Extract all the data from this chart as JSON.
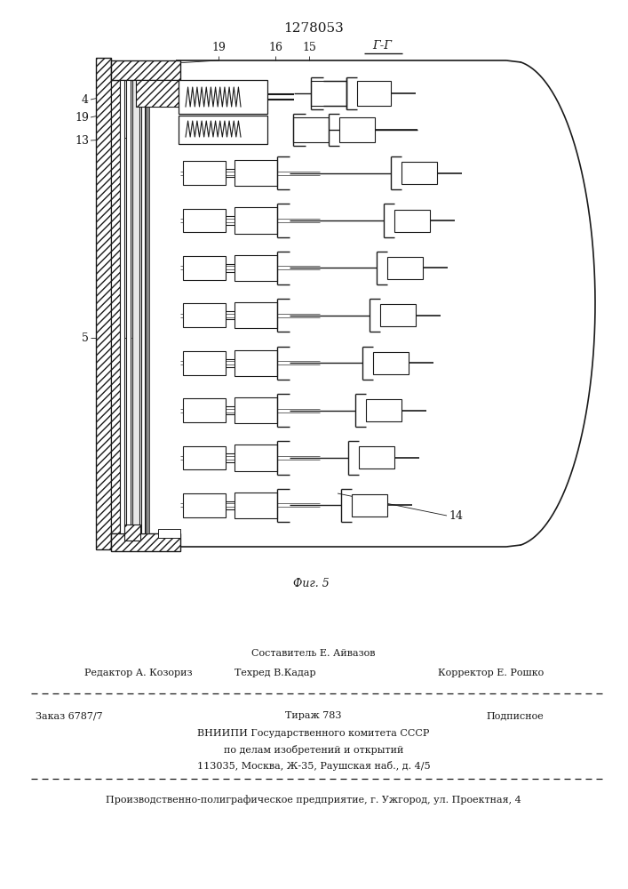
{
  "patent_number": "1278053",
  "fig_label": "Фиг. 5",
  "section_label": "Г-Г",
  "line_color": "#1a1a1a",
  "footer_sestavitel": "Составитель Е. Айвазов",
  "footer_editor": "Редактор А. Козориз",
  "footer_tekhred": "Техред В.Кадар",
  "footer_korrektor": "Корректор Е. Рошко",
  "footer_zakaz": "Заказ 6787/7",
  "footer_tirazh": "Тираж 783",
  "footer_podpisnoe": "Подписное",
  "footer_vn1": "ВНИИПИ Государственного комитета СССР",
  "footer_vn2": "по делам изобретений и открытий",
  "footer_addr": "113035, Москва, Ж-35, Раушская наб., д. 4/5",
  "footer_prod": "Производственно-полиграфическое предприятие, г. Ужгород, ул. Проектная, 4"
}
